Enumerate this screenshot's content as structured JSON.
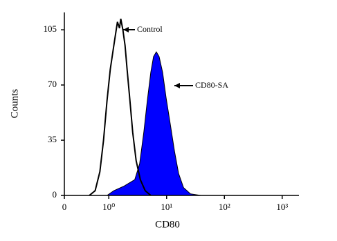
{
  "chart_data": {
    "type": "histogram-overlay",
    "x_label": "CD80",
    "y_label": "Counts",
    "xscale": "log",
    "xlim": [
      0.17,
      1950
    ],
    "xticks": [
      {
        "value": 0.17,
        "label": "0"
      },
      {
        "value": 1,
        "label": "10⁰"
      },
      {
        "value": 10,
        "label": "10¹"
      },
      {
        "value": 100,
        "label": "10²"
      },
      {
        "value": 1000,
        "label": "10³"
      }
    ],
    "ylim": [
      0,
      116
    ],
    "yticks": [
      0,
      35,
      70,
      105
    ],
    "series": [
      {
        "name": "CD80-SA",
        "color": "#0000ff",
        "filled": true,
        "x": [
          0.93,
          1.22,
          1.85,
          2.81,
          3.41,
          4.03,
          4.63,
          5.32,
          5.94,
          6.64,
          7.42,
          8.53,
          9.79,
          11.6,
          13.7,
          16.1,
          19.6,
          25.9,
          39.2
        ],
        "values": [
          0,
          3,
          6,
          10,
          20,
          40,
          60,
          78,
          88,
          91,
          88,
          78,
          62,
          45,
          28,
          14,
          5,
          1,
          0
        ]
      },
      {
        "name": "Control",
        "color": "#000000",
        "filled": false,
        "x": [
          0.46,
          0.58,
          0.7,
          0.81,
          0.93,
          1.06,
          1.22,
          1.33,
          1.41,
          1.53,
          1.61,
          1.75,
          1.91,
          2.07,
          2.32,
          2.59,
          2.97,
          3.51,
          4.26,
          5.32
        ],
        "values": [
          0,
          3,
          15,
          35,
          60,
          80,
          95,
          104,
          110,
          106,
          112,
          105,
          95,
          80,
          60,
          40,
          22,
          10,
          3,
          0
        ]
      }
    ]
  }
}
